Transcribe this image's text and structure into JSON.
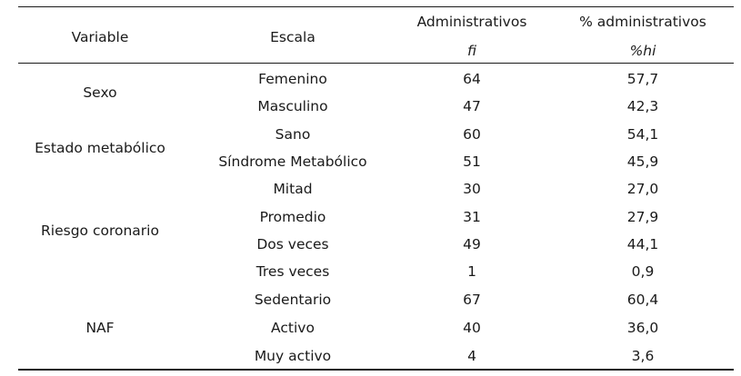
{
  "table": {
    "headers": {
      "variable": "Variable",
      "escala": "Escala",
      "administrativos": "Administrativos",
      "pct_administrativos": "% administrativos",
      "fi": "fi",
      "hi": "%hi"
    },
    "groups": [
      {
        "label": "Sexo"
      },
      {
        "label": "Estado metabólico"
      },
      {
        "label": "Riesgo coronario"
      },
      {
        "label": "NAF"
      }
    ],
    "rows": [
      {
        "escala": "Femenino",
        "fi": "64",
        "hi": "57,7"
      },
      {
        "escala": "Masculino",
        "fi": "47",
        "hi": "42,3"
      },
      {
        "escala": "Sano",
        "fi": "60",
        "hi": "54,1"
      },
      {
        "escala": "Síndrome Metabólico",
        "fi": "51",
        "hi": "45,9"
      },
      {
        "escala": "Mitad",
        "fi": "30",
        "hi": "27,0"
      },
      {
        "escala": "Promedio",
        "fi": "31",
        "hi": "27,9"
      },
      {
        "escala": "Dos veces",
        "fi": "49",
        "hi": "44,1"
      },
      {
        "escala": "Tres veces",
        "fi": "1",
        "hi": "0,9"
      },
      {
        "escala": "Sedentario",
        "fi": "67",
        "hi": "60,4"
      },
      {
        "escala": "Activo",
        "fi": "40",
        "hi": "36,0"
      },
      {
        "escala": "Muy activo",
        "fi": "4",
        "hi": "3,6"
      }
    ]
  }
}
